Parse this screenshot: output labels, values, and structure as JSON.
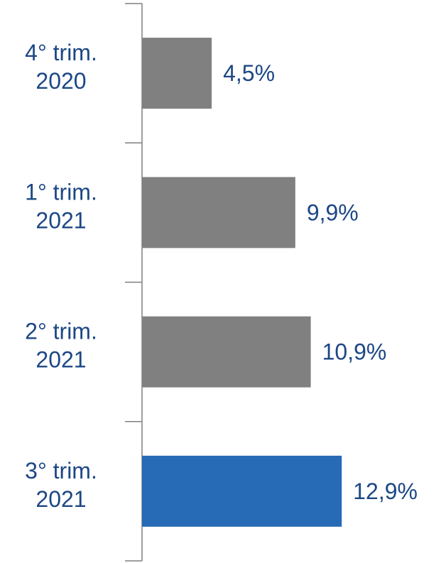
{
  "chart_data": {
    "type": "bar",
    "orientation": "horizontal",
    "categories": [
      [
        "4° trim.",
        "2020"
      ],
      [
        "1° trim.",
        "2021"
      ],
      [
        "2° trim.",
        "2021"
      ],
      [
        "3° trim.",
        "2021"
      ]
    ],
    "values": [
      4.5,
      9.9,
      10.9,
      12.9
    ],
    "value_labels": [
      "4,5%",
      "9,9%",
      "10,9%",
      "12,9%"
    ],
    "bar_colors": [
      "#808080",
      "#808080",
      "#808080",
      "#276ab5"
    ],
    "label_color": "#1c4785",
    "axis_color": "#7f7f7f",
    "xlim": [
      0,
      20
    ],
    "grid": false,
    "legend": false,
    "title": "",
    "xlabel": "",
    "ylabel": ""
  }
}
